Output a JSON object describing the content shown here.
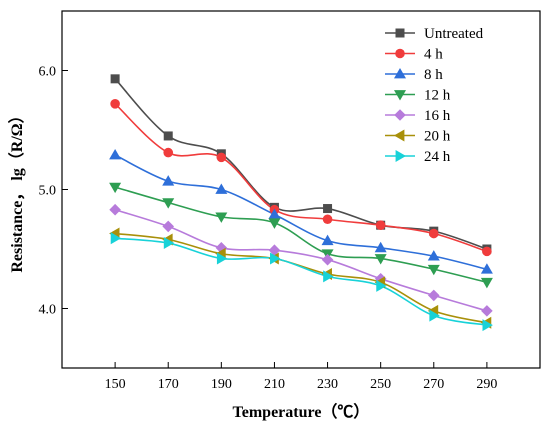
{
  "chart_data": {
    "type": "line",
    "title": "",
    "xlabel": "Temperature（℃）",
    "ylabel": "Resistance， lg（R/Ω）",
    "x": [
      150,
      170,
      190,
      210,
      230,
      250,
      270,
      290
    ],
    "x_tick_labels": [
      "150",
      "170",
      "190",
      "210",
      "230",
      "250",
      "270",
      "290"
    ],
    "xlim": [
      130,
      310
    ],
    "ylim": [
      3.5,
      6.5
    ],
    "y_ticks": [
      4.0,
      5.0,
      6.0
    ],
    "y_tick_labels": [
      "4.0",
      "5.0",
      "6.0"
    ],
    "grid": false,
    "legend_position": "top-right",
    "series": [
      {
        "name": "Untreated",
        "color": "#4d4d4d",
        "marker": "square",
        "values": [
          5.93,
          5.45,
          5.3,
          4.85,
          4.84,
          4.7,
          4.65,
          4.5
        ]
      },
      {
        "name": "4 h",
        "color": "#f03c3c",
        "marker": "circle",
        "values": [
          5.72,
          5.31,
          5.27,
          4.83,
          4.75,
          4.7,
          4.63,
          4.48
        ]
      },
      {
        "name": "8 h",
        "color": "#2e6fd9",
        "marker": "triangle-up",
        "values": [
          5.29,
          5.07,
          5.0,
          4.79,
          4.57,
          4.51,
          4.44,
          4.33
        ]
      },
      {
        "name": "12 h",
        "color": "#2e9e52",
        "marker": "triangle-down",
        "values": [
          5.02,
          4.89,
          4.77,
          4.72,
          4.46,
          4.42,
          4.33,
          4.22
        ]
      },
      {
        "name": "16 h",
        "color": "#b77bdb",
        "marker": "diamond",
        "values": [
          4.83,
          4.69,
          4.51,
          4.49,
          4.41,
          4.25,
          4.11,
          3.98
        ]
      },
      {
        "name": "20 h",
        "color": "#a8900a",
        "marker": "triangle-left",
        "values": [
          4.63,
          4.58,
          4.46,
          4.42,
          4.29,
          4.22,
          3.98,
          3.88
        ]
      },
      {
        "name": "24 h",
        "color": "#18d2d8",
        "marker": "triangle-right",
        "values": [
          4.59,
          4.55,
          4.42,
          4.42,
          4.27,
          4.19,
          3.94,
          3.86
        ]
      }
    ]
  }
}
